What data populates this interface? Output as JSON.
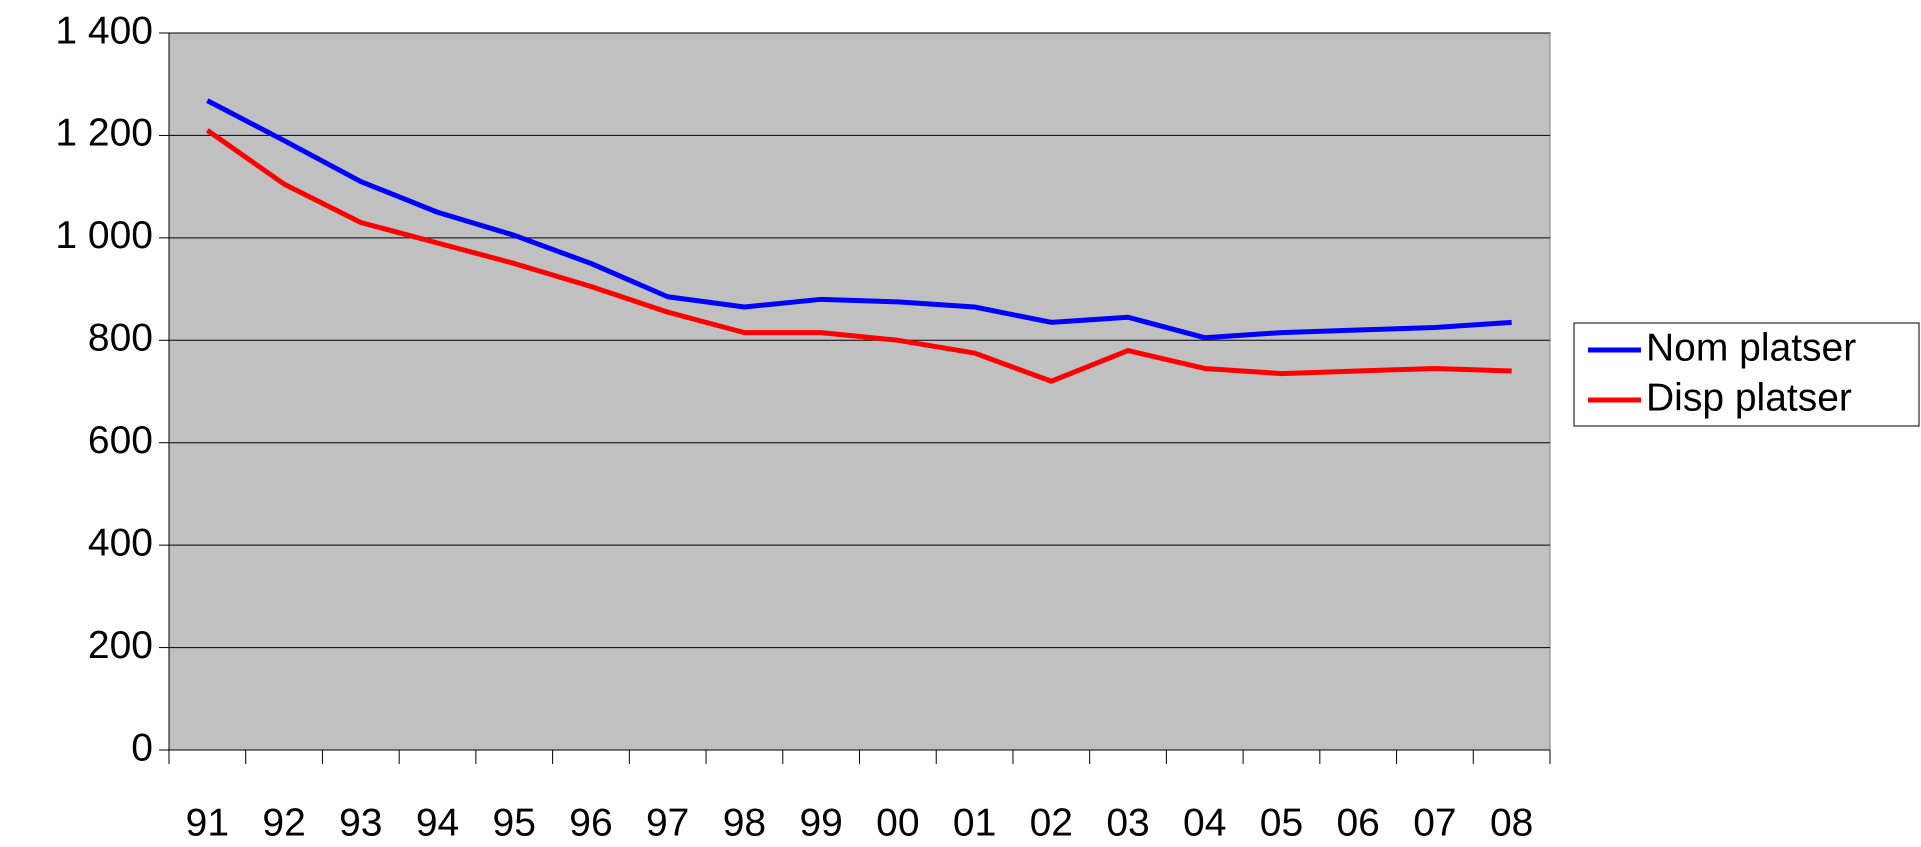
{
  "chart_data": {
    "type": "line",
    "categories": [
      "91",
      "92",
      "93",
      "94",
      "95",
      "96",
      "97",
      "98",
      "99",
      "00",
      "01",
      "02",
      "03",
      "04",
      "05",
      "06",
      "07",
      "08"
    ],
    "series": [
      {
        "name": "Nom platser",
        "color": "#0000ff",
        "values": [
          1268,
          1190,
          1110,
          1050,
          1005,
          950,
          885,
          865,
          880,
          875,
          865,
          835,
          845,
          805,
          815,
          820,
          825,
          835
        ]
      },
      {
        "name": "Disp platser",
        "color": "#ff0000",
        "values": [
          1210,
          1105,
          1030,
          990,
          950,
          905,
          855,
          815,
          815,
          800,
          775,
          720,
          780,
          745,
          735,
          740,
          745,
          740
        ]
      }
    ],
    "ylim": [
      0,
      1400
    ],
    "yticks": [
      0,
      200,
      400,
      600,
      800,
      {
        "value": 1000,
        "label": "1 000"
      },
      {
        "value": 1200,
        "label": "1 200"
      },
      {
        "value": 1400,
        "label": "1 400"
      }
    ],
    "grid": true,
    "plot_background": "#c0c0c0",
    "legend": "right"
  }
}
